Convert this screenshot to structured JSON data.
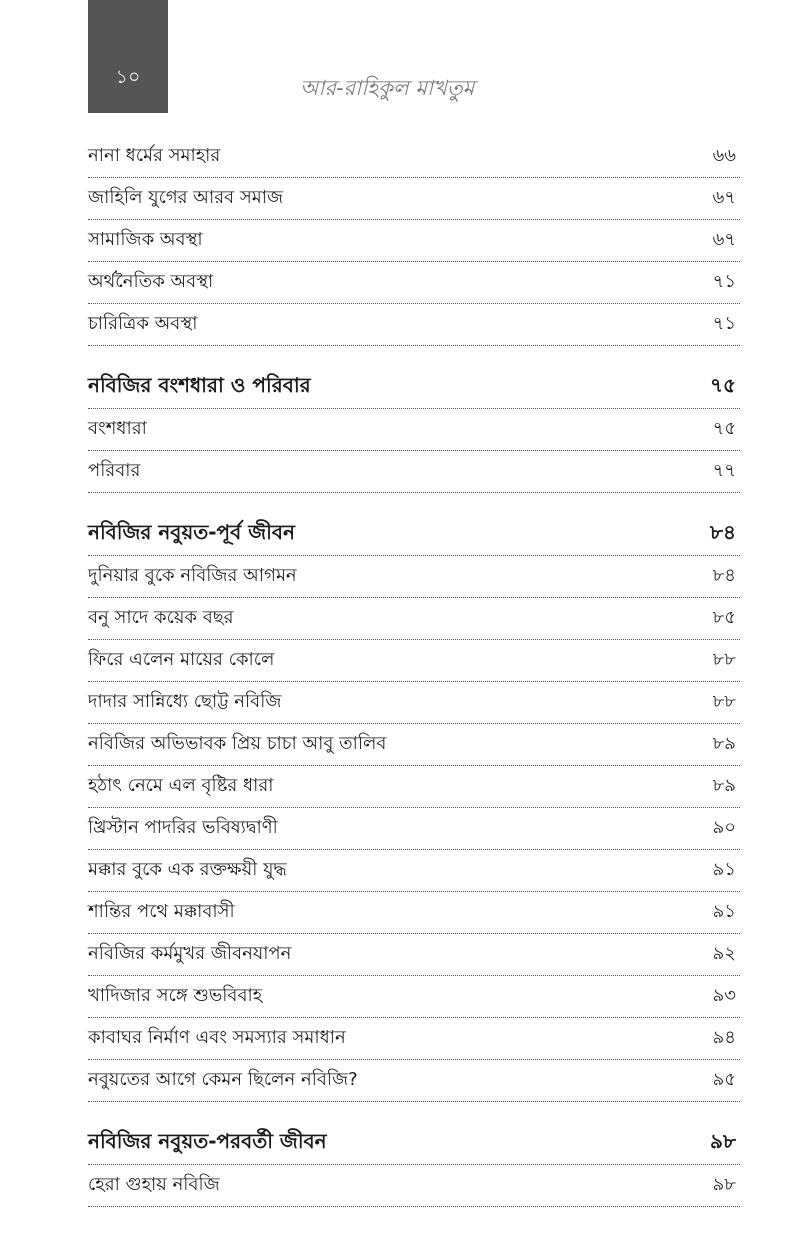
{
  "header": {
    "page_number": "১০",
    "running_title": "আর-রাহিকুল মাখতুম"
  },
  "toc": [
    {
      "title": "নানা ধর্মের সমাহার",
      "page": "৬৬",
      "section": false
    },
    {
      "title": "জাহিলি যুগের আরব সমাজ",
      "page": "৬৭",
      "section": false
    },
    {
      "title": "সামাজিক অবস্থা",
      "page": "৬৭",
      "section": false
    },
    {
      "title": "অর্থনৈতিক অবস্থা",
      "page": "৭১",
      "section": false
    },
    {
      "title": "চারিত্রিক অবস্থা",
      "page": "৭১",
      "section": false
    },
    {
      "title": "নবিজির বংশধারা ও পরিবার",
      "page": "৭৫",
      "section": true
    },
    {
      "title": "বংশধারা",
      "page": "৭৫",
      "section": false
    },
    {
      "title": "পরিবার",
      "page": "৭৭",
      "section": false
    },
    {
      "title": "নবিজির নবুয়ত-পূর্ব জীবন",
      "page": "৮৪",
      "section": true
    },
    {
      "title": "দুনিয়ার বুকে নবিজির আগমন",
      "page": "৮৪",
      "section": false
    },
    {
      "title": "বনু সাদে কয়েক বছর",
      "page": "৮৫",
      "section": false
    },
    {
      "title": "ফিরে এলেন মায়ের কোলে",
      "page": "৮৮",
      "section": false
    },
    {
      "title": "দাদার সান্নিধ্যে ছোট্ট নবিজি",
      "page": "৮৮",
      "section": false
    },
    {
      "title": "নবিজির অভিভাবক প্রিয় চাচা আবু তালিব",
      "page": "৮৯",
      "section": false
    },
    {
      "title": "হঠাৎ নেমে এল বৃষ্টির ধারা",
      "page": "৮৯",
      "section": false
    },
    {
      "title": "খ্রিস্টান পাদরির ভবিষ্যদ্বাণী",
      "page": "৯০",
      "section": false
    },
    {
      "title": "মক্কার বুকে এক রক্তক্ষয়ী যুদ্ধ",
      "page": "৯১",
      "section": false
    },
    {
      "title": "শান্তির পথে মক্কাবাসী",
      "page": "৯১",
      "section": false
    },
    {
      "title": "নবিজির কর্মমুখর জীবনযাপন",
      "page": "৯২",
      "section": false
    },
    {
      "title": "খাদিজার সঙ্গে শুভবিবাহ",
      "page": "৯৩",
      "section": false
    },
    {
      "title": "কাবাঘর নির্মাণ এবং সমস্যার সমাধান",
      "page": "৯৪",
      "section": false
    },
    {
      "title": "নবুয়তের আগে কেমন ছিলেন নবিজি?",
      "page": "৯৫",
      "section": false
    },
    {
      "title": "নবিজির নবুয়ত-পরবর্তী জীবন",
      "page": "৯৮",
      "section": true
    },
    {
      "title": "হেরা গুহায় নবিজি",
      "page": "৯৮",
      "section": false
    }
  ]
}
